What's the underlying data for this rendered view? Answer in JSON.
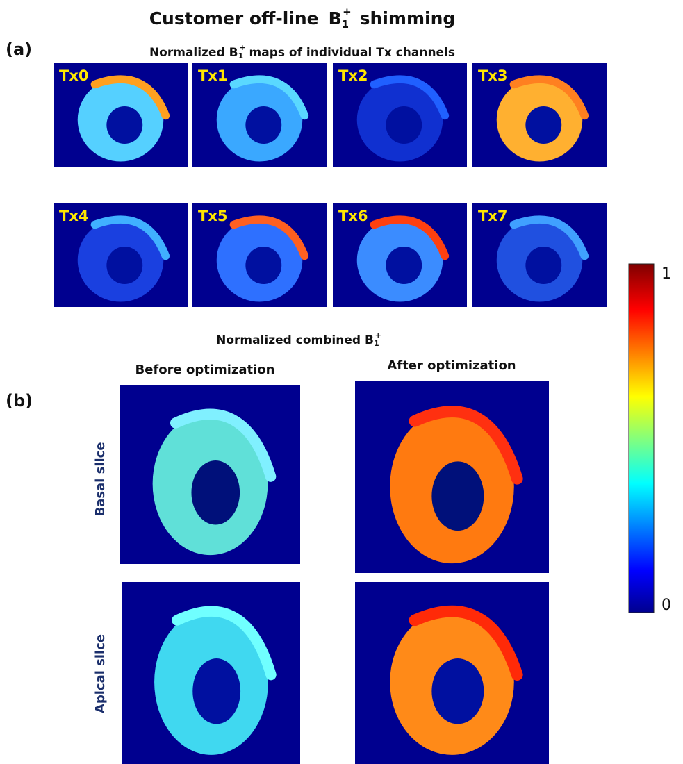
{
  "title": {
    "lead": "Customer off-line",
    "symbol": "B",
    "sub": "1",
    "sup": "+",
    "tail": "shimming"
  },
  "panel_a": {
    "label": "(a)",
    "heading": {
      "lead": "Normalized",
      "symbol": "B",
      "sub": "1",
      "sup": "+",
      "tail": "maps of individual Tx channels"
    },
    "channels": [
      "Tx0",
      "Tx1",
      "Tx2",
      "Tx3",
      "Tx4",
      "Tx5",
      "Tx6",
      "Tx7"
    ]
  },
  "panel_b": {
    "label": "(b)",
    "heading": {
      "lead": "Normalized combined",
      "symbol": "B",
      "sub": "1",
      "sup": "+"
    },
    "columns": [
      "Before optimization",
      "After optimization"
    ],
    "rows": [
      "Basal slice",
      "Apical slice"
    ]
  },
  "colorbar": {
    "ticks": [
      0,
      1
    ]
  }
}
